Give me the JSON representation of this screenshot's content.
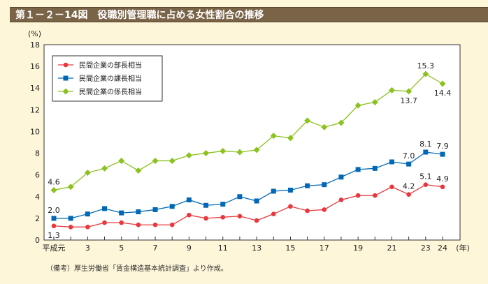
{
  "title": "第１－２－14図　役職別管理職に占める女性割合の推移",
  "note": "（備考）厚生労働省「賃金構造基本統計調査」より作成。",
  "chart_data": {
    "type": "line",
    "title": "役職別管理職に占める女性割合の推移",
    "ylabel": "(%)",
    "xlabel": "(年)",
    "ylim": [
      0,
      18
    ],
    "yticks": [
      0,
      2,
      4,
      6,
      8,
      10,
      12,
      14,
      16,
      18
    ],
    "x": [
      1,
      2,
      3,
      4,
      5,
      6,
      7,
      8,
      9,
      10,
      11,
      12,
      13,
      14,
      15,
      16,
      17,
      18,
      19,
      20,
      21,
      22,
      23,
      24
    ],
    "xtick_labels": [
      {
        "x": 1,
        "label": "平成元"
      },
      {
        "x": 3,
        "label": "3"
      },
      {
        "x": 5,
        "label": "5"
      },
      {
        "x": 7,
        "label": "7"
      },
      {
        "x": 9,
        "label": "9"
      },
      {
        "x": 11,
        "label": "11"
      },
      {
        "x": 13,
        "label": "13"
      },
      {
        "x": 15,
        "label": "15"
      },
      {
        "x": 17,
        "label": "17"
      },
      {
        "x": 19,
        "label": "19"
      },
      {
        "x": 21,
        "label": "21"
      },
      {
        "x": 23,
        "label": "23"
      },
      {
        "x": 24,
        "label": "24"
      }
    ],
    "legend_position": "top-left",
    "series": [
      {
        "name": "民間企業の部長相当",
        "color": "#e8383d",
        "marker": "circle",
        "values": [
          1.3,
          1.2,
          1.2,
          1.6,
          1.6,
          1.4,
          1.4,
          1.4,
          2.3,
          2.0,
          2.1,
          2.2,
          1.8,
          2.4,
          3.1,
          2.7,
          2.8,
          3.7,
          4.1,
          4.1,
          4.9,
          4.2,
          5.1,
          4.9
        ],
        "labels": [
          {
            "x": 1,
            "text": "1.3",
            "pos": "below"
          },
          {
            "x": 22,
            "text": "4.2",
            "pos": "above"
          },
          {
            "x": 23,
            "text": "5.1",
            "pos": "above"
          },
          {
            "x": 24,
            "text": "4.9",
            "pos": "above"
          }
        ]
      },
      {
        "name": "民間企業の課長相当",
        "color": "#0068b7",
        "marker": "square",
        "values": [
          2.0,
          2.0,
          2.4,
          2.9,
          2.5,
          2.6,
          2.8,
          3.1,
          3.7,
          3.2,
          3.3,
          4.0,
          3.6,
          4.5,
          4.6,
          5.0,
          5.1,
          5.8,
          6.5,
          6.6,
          7.2,
          7.0,
          8.1,
          7.9
        ],
        "labels": [
          {
            "x": 1,
            "text": "2.0",
            "pos": "above"
          },
          {
            "x": 22,
            "text": "7.0",
            "pos": "above"
          },
          {
            "x": 23,
            "text": "8.1",
            "pos": "above"
          },
          {
            "x": 24,
            "text": "7.9",
            "pos": "above"
          }
        ]
      },
      {
        "name": "民間企業の係長相当",
        "color": "#8cc21f",
        "marker": "diamond",
        "values": [
          4.6,
          4.9,
          6.2,
          6.6,
          7.3,
          6.4,
          7.3,
          7.3,
          7.8,
          8.0,
          8.2,
          8.1,
          8.3,
          9.6,
          9.4,
          11.0,
          10.4,
          10.8,
          12.4,
          12.7,
          13.8,
          13.7,
          15.3,
          14.4
        ],
        "labels": [
          {
            "x": 1,
            "text": "4.6",
            "pos": "above"
          },
          {
            "x": 22,
            "text": "13.7",
            "pos": "below"
          },
          {
            "x": 23,
            "text": "15.3",
            "pos": "above"
          },
          {
            "x": 24,
            "text": "14.4",
            "pos": "below"
          }
        ]
      }
    ]
  }
}
